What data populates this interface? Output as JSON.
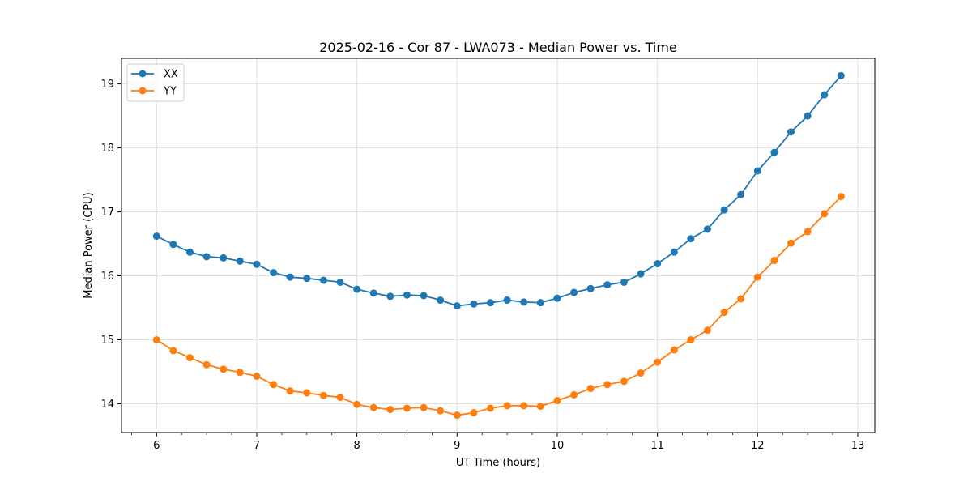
{
  "chart_data": {
    "type": "line",
    "title": "2025-02-16 - Cor 87 - LWA073 - Median Power vs. Time",
    "xlabel": "UT Time (hours)",
    "ylabel": "Median Power (CPU)",
    "xlim": [
      5.65,
      13.17
    ],
    "ylim": [
      13.55,
      19.4
    ],
    "xticks": [
      6,
      7,
      8,
      9,
      10,
      11,
      12,
      13
    ],
    "yticks": [
      14,
      15,
      16,
      17,
      18,
      19
    ],
    "grid": true,
    "legend_position": "top-left",
    "x": [
      6.0,
      6.167,
      6.333,
      6.5,
      6.667,
      6.833,
      7.0,
      7.167,
      7.333,
      7.5,
      7.667,
      7.833,
      8.0,
      8.167,
      8.333,
      8.5,
      8.667,
      8.833,
      9.0,
      9.167,
      9.333,
      9.5,
      9.667,
      9.833,
      10.0,
      10.167,
      10.333,
      10.5,
      10.667,
      10.833,
      11.0,
      11.167,
      11.333,
      11.5,
      11.667,
      11.833,
      12.0,
      12.167,
      12.333,
      12.5,
      12.667,
      12.833
    ],
    "series": [
      {
        "name": "XX",
        "color": "#1f77b4",
        "values": [
          16.62,
          16.49,
          16.37,
          16.3,
          16.28,
          16.23,
          16.18,
          16.05,
          15.98,
          15.96,
          15.93,
          15.9,
          15.79,
          15.73,
          15.68,
          15.7,
          15.69,
          15.62,
          15.53,
          15.56,
          15.58,
          15.62,
          15.59,
          15.58,
          15.65,
          15.74,
          15.8,
          15.86,
          15.9,
          16.03,
          16.19,
          16.37,
          16.58,
          16.73,
          17.03,
          17.27,
          17.64,
          17.93,
          18.25,
          18.5,
          18.83,
          19.13
        ]
      },
      {
        "name": "YY",
        "color": "#ff7f0e",
        "values": [
          15.0,
          14.83,
          14.72,
          14.61,
          14.54,
          14.49,
          14.43,
          14.3,
          14.2,
          14.17,
          14.13,
          14.1,
          13.99,
          13.94,
          13.91,
          13.93,
          13.94,
          13.89,
          13.82,
          13.86,
          13.93,
          13.97,
          13.97,
          13.96,
          14.05,
          14.14,
          14.24,
          14.3,
          14.35,
          14.48,
          14.65,
          14.84,
          15.0,
          15.15,
          15.43,
          15.64,
          15.98,
          16.24,
          16.51,
          16.69,
          16.97,
          17.24
        ]
      }
    ]
  }
}
